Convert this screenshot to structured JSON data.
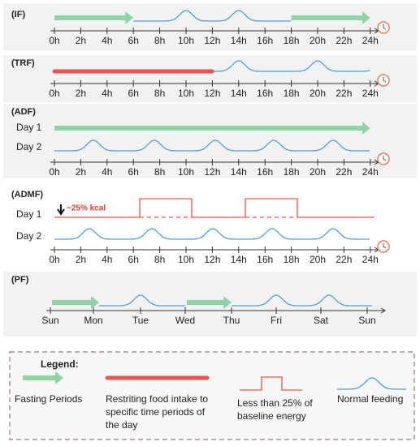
{
  "hours": [
    "0h",
    "2h",
    "4h",
    "6h",
    "8h",
    "10h",
    "12h",
    "14h",
    "16h",
    "18h",
    "20h",
    "22h",
    "24h"
  ],
  "days": [
    "Sun",
    "Mon",
    "Tue",
    "Wed",
    "Thu",
    "Fri",
    "Sat",
    "Sun"
  ],
  "sections": [
    {
      "title": "(IF)"
    },
    {
      "title": "(TRF)"
    },
    {
      "title": "(ADF)",
      "rows": [
        "Day 1",
        "Day 2"
      ]
    },
    {
      "title": "(ADMF)",
      "rows": [
        "Day 1",
        "Day 2"
      ],
      "note": "−25% kcal"
    },
    {
      "title": "(PF)"
    }
  ],
  "legend": {
    "title": "Legend:",
    "items": [
      "Fasting Periods",
      "Restriting food intake to specific time periods of the day",
      "Less than 25% of baseline energy",
      "Normal feeding"
    ]
  }
}
